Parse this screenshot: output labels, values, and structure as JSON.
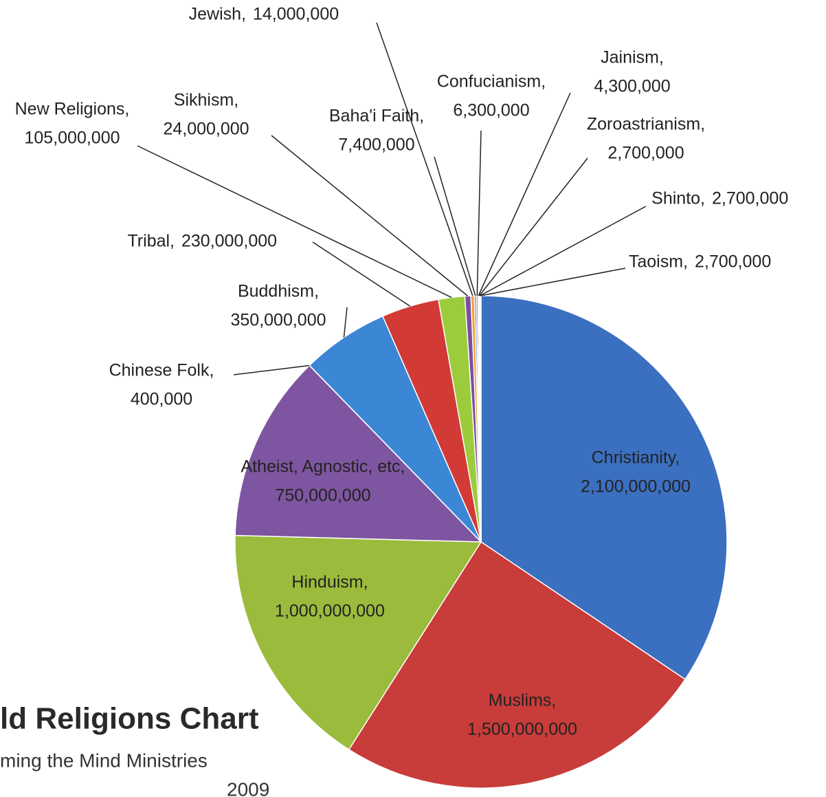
{
  "chart_data": {
    "type": "pie",
    "title": "ld Religions Chart",
    "subtitle": "ming the Mind Ministries",
    "caption": "2009",
    "categories": [
      "Christianity,",
      "Muslims,",
      "Hinduism,",
      "Atheist, Agnostic, etc,",
      "Chinese Folk,",
      "Buddhism,",
      "Tribal,",
      "New Religions,",
      "Sikhism,",
      "Jewish,",
      "Baha'i Faith,",
      "Confucianism,",
      "Jainism,",
      "Zoroastrianism,",
      "Shinto,",
      "Taoism,"
    ],
    "values": [
      2100000000,
      1500000000,
      1000000000,
      750000000,
      400000,
      350000000,
      230000000,
      105000000,
      24000000,
      14000000,
      7400000,
      6300000,
      4300000,
      2700000,
      2700000,
      2700000
    ],
    "value_labels": [
      "2,100,000,000",
      "1,500,000,000",
      "1,000,000,000",
      "750,000,000",
      "400,000",
      "350,000,000",
      "230,000,000",
      "105,000,000",
      "24,000,000",
      "14,000,000",
      "7,400,000",
      "6,300,000",
      "4,300,000",
      "2,700,000",
      "2,700,000",
      "2,700,000"
    ],
    "colors": [
      "#3b6fc0",
      "#c83c3a",
      "#9bbb3c",
      "#7e55a0",
      "#f28a1c",
      "#3c86d6",
      "#d23a36",
      "#9ccc3c",
      "#7a4fa0",
      "#f5a030",
      "#4a7fc8",
      "#c83c3a",
      "#9bbb3c",
      "#7e55a0",
      "#f28a1c",
      "#3c86d6"
    ]
  }
}
